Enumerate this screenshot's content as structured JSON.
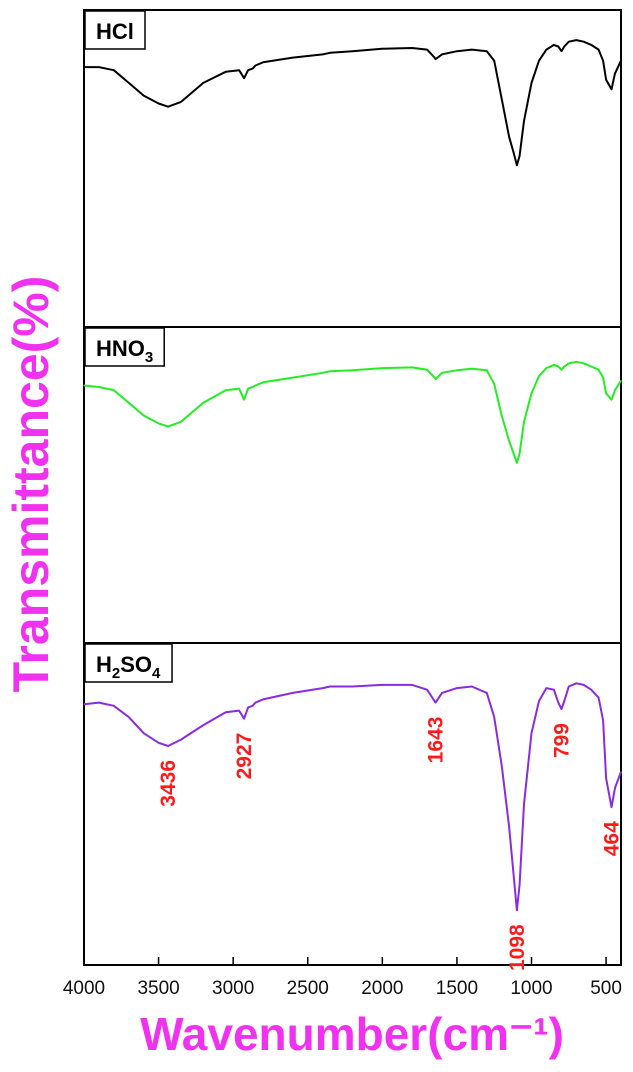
{
  "chart_data": {
    "type": "line",
    "xlabel": "Wavenumber(cm⁻¹)",
    "ylabel": "Transmittance(%)",
    "xlim": [
      4000,
      400
    ],
    "x_reversed": true,
    "x_ticks": [
      4000,
      3500,
      3000,
      2500,
      2000,
      1500,
      1000,
      500
    ],
    "x_tick_labels": [
      "4000",
      "3500",
      "3000",
      "2500",
      "2000",
      "1500",
      "1000",
      "500"
    ],
    "ylim": [
      0,
      100
    ],
    "y_ticks_shown": false,
    "grid": false,
    "colors": {
      "axis_title": "#f032f0",
      "peak_labels": "#ff1a1a",
      "HCl": "#000000",
      "HNO3": "#22ee22",
      "H2SO4": "#8a2be2"
    },
    "series": [
      {
        "name": "HCl",
        "label_main": "HCl",
        "label_sub": "",
        "label_tail": "",
        "color": "#000000",
        "x": [
          4000,
          3900,
          3800,
          3700,
          3600,
          3500,
          3436,
          3350,
          3200,
          3050,
          2960,
          2927,
          2900,
          2870,
          2850,
          2800,
          2600,
          2400,
          2350,
          2200,
          2000,
          1800,
          1700,
          1650,
          1643,
          1600,
          1500,
          1400,
          1300,
          1250,
          1200,
          1150,
          1120,
          1098,
          1080,
          1050,
          1000,
          950,
          900,
          850,
          820,
          799,
          780,
          750,
          700,
          650,
          600,
          550,
          520,
          500,
          464,
          440,
          400
        ],
        "y": [
          82,
          82,
          81,
          77,
          73,
          70.5,
          69.5,
          71,
          77,
          80.5,
          81,
          78.5,
          81,
          81.5,
          82.5,
          83.5,
          85,
          86,
          86.5,
          87,
          87.8,
          88,
          87.5,
          85,
          84.5,
          86,
          87,
          87.5,
          87,
          84,
          72,
          60,
          55,
          51,
          54,
          65,
          77,
          84,
          87.5,
          89,
          88.5,
          87,
          88.5,
          90,
          90.5,
          90,
          89,
          87.5,
          84,
          78,
          75,
          80,
          84
        ]
      },
      {
        "name": "HNO3",
        "label_main": "HNO",
        "label_sub": "3",
        "label_tail": "",
        "color": "#22ee22",
        "x": [
          4000,
          3900,
          3800,
          3700,
          3600,
          3500,
          3436,
          3350,
          3200,
          3050,
          2960,
          2927,
          2900,
          2870,
          2850,
          2800,
          2600,
          2400,
          2350,
          2200,
          2000,
          1800,
          1700,
          1650,
          1643,
          1600,
          1500,
          1400,
          1300,
          1250,
          1200,
          1150,
          1120,
          1098,
          1080,
          1050,
          1000,
          950,
          900,
          850,
          820,
          799,
          780,
          750,
          700,
          650,
          600,
          550,
          520,
          500,
          464,
          440,
          400
        ],
        "y": [
          81.5,
          81,
          80,
          76,
          72,
          69.5,
          68.5,
          70,
          76,
          80,
          80.5,
          77,
          80.5,
          81,
          81.5,
          82.5,
          84,
          85.5,
          86,
          86.3,
          87,
          87.2,
          86.5,
          84,
          83.5,
          85.5,
          86.3,
          86.8,
          86.3,
          82,
          72,
          64,
          60,
          57,
          60,
          70,
          79,
          84.5,
          87,
          88,
          87.5,
          86.5,
          87.5,
          88.5,
          89,
          88.5,
          87.5,
          86.5,
          84,
          79,
          77,
          80,
          83
        ]
      },
      {
        "name": "H2SO4",
        "label_main": "H",
        "label_sub": "2",
        "label_tail": "SO",
        "label_sub2": "4",
        "color": "#8a2be2",
        "x": [
          4000,
          3900,
          3800,
          3700,
          3600,
          3500,
          3436,
          3350,
          3200,
          3050,
          2960,
          2927,
          2900,
          2870,
          2850,
          2800,
          2600,
          2400,
          2350,
          2200,
          2000,
          1800,
          1700,
          1650,
          1643,
          1600,
          1500,
          1400,
          1300,
          1250,
          1200,
          1150,
          1120,
          1098,
          1080,
          1050,
          1000,
          950,
          900,
          850,
          820,
          799,
          780,
          750,
          700,
          650,
          600,
          550,
          520,
          500,
          464,
          440,
          400
        ],
        "y": [
          81,
          81.5,
          80.5,
          77,
          72,
          69,
          68,
          70,
          74.5,
          78.5,
          79,
          76.5,
          80,
          80.5,
          81.5,
          82.5,
          84.5,
          86,
          86.5,
          86.5,
          87,
          87,
          85.5,
          82,
          81.5,
          84.5,
          86,
          86.5,
          84.5,
          77,
          62,
          43,
          28,
          17,
          25,
          50,
          72,
          82,
          86,
          85.5,
          81.5,
          79.5,
          82,
          86.5,
          87.5,
          87,
          85.5,
          83,
          76,
          58,
          49,
          55,
          60
        ]
      }
    ],
    "annotations": [
      {
        "text": "3436",
        "x": 3436,
        "series": "H2SO4"
      },
      {
        "text": "2927",
        "x": 2927,
        "series": "H2SO4"
      },
      {
        "text": "1643",
        "x": 1643,
        "series": "H2SO4"
      },
      {
        "text": "1098",
        "x": 1098,
        "series": "H2SO4"
      },
      {
        "text": "799",
        "x": 799,
        "series": "H2SO4"
      },
      {
        "text": "464",
        "x": 464,
        "series": "H2SO4"
      }
    ]
  }
}
